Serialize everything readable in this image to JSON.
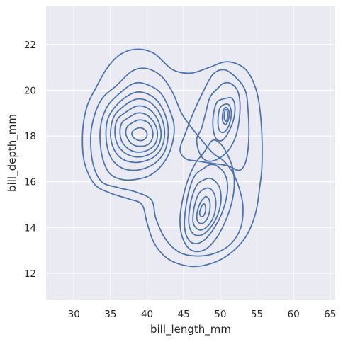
{
  "chart_data": {
    "type": "contour",
    "title": "",
    "xlabel": "bill_length_mm",
    "ylabel": "bill_depth_mm",
    "xlim": [
      26.2,
      65.7
    ],
    "ylim": [
      10.85,
      23.7
    ],
    "xticks": [
      30,
      35,
      40,
      45,
      50,
      55,
      60,
      65
    ],
    "yticks": [
      12,
      14,
      16,
      18,
      20,
      22
    ],
    "grid": true,
    "background": "#eaeaf2",
    "line_color": "#4c72b0",
    "grid_color": "#ffffff",
    "levels": [
      [
        [
          38.8,
          21.8
        ],
        [
          41.0,
          21.6
        ],
        [
          43.5,
          20.9
        ],
        [
          46.0,
          20.75
        ],
        [
          48.5,
          21.0
        ],
        [
          51.0,
          21.25
        ],
        [
          53.5,
          20.9
        ],
        [
          55.0,
          19.9
        ],
        [
          55.6,
          18.5
        ],
        [
          55.7,
          16.8
        ],
        [
          55.4,
          15.8
        ],
        [
          54.8,
          14.6
        ],
        [
          53.5,
          13.6
        ],
        [
          51.5,
          12.9
        ],
        [
          49.0,
          12.45
        ],
        [
          46.0,
          12.3
        ],
        [
          43.0,
          12.6
        ],
        [
          41.0,
          13.3
        ],
        [
          40.0,
          14.2
        ],
        [
          39.3,
          15.0
        ],
        [
          37.5,
          15.25
        ],
        [
          35.0,
          15.5
        ],
        [
          32.8,
          15.9
        ],
        [
          31.4,
          16.9
        ],
        [
          31.2,
          18.2
        ],
        [
          31.8,
          19.3
        ],
        [
          33.0,
          20.1
        ],
        [
          34.6,
          21.0
        ],
        [
          36.5,
          21.6
        ],
        [
          38.8,
          21.8
        ]
      ],
      [
        [
          35.8,
          20.2
        ],
        [
          38.0,
          20.85
        ],
        [
          40.0,
          20.95
        ],
        [
          42.0,
          20.6
        ],
        [
          43.5,
          19.9
        ],
        [
          44.7,
          19.0
        ],
        [
          46.0,
          18.4
        ],
        [
          47.5,
          17.8
        ],
        [
          49.0,
          17.25
        ],
        [
          50.5,
          16.9
        ],
        [
          51.7,
          16.4
        ],
        [
          52.6,
          15.7
        ],
        [
          53.1,
          14.9
        ],
        [
          52.8,
          14.0
        ],
        [
          51.5,
          13.3
        ],
        [
          49.5,
          12.9
        ],
        [
          47.0,
          12.75
        ],
        [
          44.5,
          12.9
        ],
        [
          42.5,
          13.5
        ],
        [
          41.2,
          14.4
        ],
        [
          40.6,
          15.2
        ],
        [
          38.5,
          15.55
        ],
        [
          36.0,
          15.75
        ],
        [
          33.8,
          16.0
        ],
        [
          32.6,
          16.8
        ],
        [
          32.3,
          18.0
        ],
        [
          32.9,
          19.0
        ],
        [
          34.0,
          19.7
        ],
        [
          35.8,
          20.2
        ]
      ],
      [
        [
          36.0,
          19.8
        ],
        [
          38.2,
          20.3
        ],
        [
          40.0,
          20.25
        ],
        [
          41.8,
          19.9
        ],
        [
          43.0,
          19.2
        ],
        [
          43.7,
          18.4
        ],
        [
          43.3,
          17.5
        ],
        [
          42.2,
          16.8
        ],
        [
          40.5,
          16.3
        ],
        [
          38.5,
          16.1
        ],
        [
          36.5,
          16.1
        ],
        [
          34.8,
          16.4
        ],
        [
          33.8,
          17.2
        ],
        [
          33.6,
          18.3
        ],
        [
          34.4,
          19.2
        ],
        [
          36.0,
          19.8
        ]
      ],
      [
        [
          36.3,
          19.5
        ],
        [
          38.3,
          19.9
        ],
        [
          40.0,
          19.85
        ],
        [
          41.5,
          19.5
        ],
        [
          42.5,
          18.9
        ],
        [
          42.9,
          18.2
        ],
        [
          42.5,
          17.4
        ],
        [
          41.4,
          16.9
        ],
        [
          39.8,
          16.6
        ],
        [
          38.0,
          16.5
        ],
        [
          36.3,
          16.65
        ],
        [
          35.0,
          17.1
        ],
        [
          34.4,
          17.9
        ],
        [
          34.7,
          18.8
        ],
        [
          36.3,
          19.5
        ]
      ],
      [
        [
          36.6,
          19.25
        ],
        [
          38.4,
          19.6
        ],
        [
          40.0,
          19.55
        ],
        [
          41.3,
          19.2
        ],
        [
          42.1,
          18.7
        ],
        [
          42.4,
          18.1
        ],
        [
          42.0,
          17.5
        ],
        [
          41.0,
          17.1
        ],
        [
          39.6,
          16.9
        ],
        [
          38.1,
          16.85
        ],
        [
          36.6,
          17.0
        ],
        [
          35.5,
          17.4
        ],
        [
          35.0,
          18.05
        ],
        [
          35.4,
          18.8
        ],
        [
          36.6,
          19.25
        ]
      ],
      [
        [
          36.9,
          19.0
        ],
        [
          38.5,
          19.3
        ],
        [
          39.9,
          19.25
        ],
        [
          41.0,
          18.95
        ],
        [
          41.7,
          18.5
        ],
        [
          41.9,
          18.0
        ],
        [
          41.5,
          17.55
        ],
        [
          40.6,
          17.25
        ],
        [
          39.4,
          17.1
        ],
        [
          38.2,
          17.1
        ],
        [
          37.0,
          17.25
        ],
        [
          36.0,
          17.6
        ],
        [
          35.6,
          18.15
        ],
        [
          35.9,
          18.7
        ],
        [
          36.9,
          19.0
        ]
      ],
      [
        [
          37.2,
          18.75
        ],
        [
          38.6,
          19.0
        ],
        [
          39.8,
          18.95
        ],
        [
          40.7,
          18.7
        ],
        [
          41.3,
          18.35
        ],
        [
          41.4,
          17.95
        ],
        [
          41.0,
          17.6
        ],
        [
          40.2,
          17.4
        ],
        [
          39.2,
          17.3
        ],
        [
          38.2,
          17.32
        ],
        [
          37.2,
          17.5
        ],
        [
          36.5,
          17.8
        ],
        [
          36.3,
          18.25
        ],
        [
          36.6,
          18.6
        ],
        [
          37.2,
          18.75
        ]
      ],
      [
        [
          37.6,
          18.5
        ],
        [
          38.8,
          18.7
        ],
        [
          39.8,
          18.65
        ],
        [
          40.5,
          18.45
        ],
        [
          40.8,
          18.1
        ],
        [
          40.6,
          17.8
        ],
        [
          40.0,
          17.6
        ],
        [
          39.1,
          17.55
        ],
        [
          38.2,
          17.6
        ],
        [
          37.5,
          17.8
        ],
        [
          37.1,
          18.1
        ],
        [
          37.2,
          18.35
        ],
        [
          37.6,
          18.5
        ]
      ],
      [
        [
          38.0,
          18.2
        ],
        [
          38.8,
          18.35
        ],
        [
          39.6,
          18.3
        ],
        [
          40.0,
          18.1
        ],
        [
          39.8,
          17.9
        ],
        [
          39.2,
          17.8
        ],
        [
          38.5,
          17.85
        ],
        [
          38.0,
          18.0
        ],
        [
          38.0,
          18.2
        ]
      ],
      [
        [
          48.9,
          17.8
        ],
        [
          47.8,
          17.3
        ],
        [
          46.6,
          16.8
        ],
        [
          45.6,
          16.1
        ],
        [
          44.9,
          15.3
        ],
        [
          44.5,
          14.4
        ],
        [
          44.7,
          13.7
        ],
        [
          45.5,
          13.15
        ],
        [
          46.6,
          12.95
        ],
        [
          48.0,
          13.05
        ],
        [
          49.4,
          13.5
        ],
        [
          50.6,
          14.2
        ],
        [
          51.5,
          15.0
        ],
        [
          51.9,
          15.8
        ],
        [
          51.7,
          16.6
        ],
        [
          50.8,
          17.3
        ],
        [
          49.9,
          17.7
        ],
        [
          48.9,
          17.8
        ]
      ],
      [
        [
          47.8,
          16.6
        ],
        [
          46.6,
          16.3
        ],
        [
          45.8,
          15.7
        ],
        [
          45.3,
          14.9
        ],
        [
          45.1,
          14.1
        ],
        [
          45.5,
          13.55
        ],
        [
          46.4,
          13.3
        ],
        [
          47.6,
          13.4
        ],
        [
          48.8,
          13.8
        ],
        [
          49.9,
          14.4
        ],
        [
          50.7,
          15.1
        ],
        [
          51.0,
          15.8
        ],
        [
          50.6,
          16.35
        ],
        [
          49.5,
          16.7
        ],
        [
          48.6,
          16.75
        ],
        [
          47.8,
          16.6
        ]
      ],
      [
        [
          47.9,
          16.1
        ],
        [
          46.9,
          15.9
        ],
        [
          46.2,
          15.4
        ],
        [
          45.8,
          14.8
        ],
        [
          45.7,
          14.2
        ],
        [
          46.1,
          13.8
        ],
        [
          46.9,
          13.65
        ],
        [
          47.9,
          13.75
        ],
        [
          48.9,
          14.1
        ],
        [
          49.7,
          14.6
        ],
        [
          50.1,
          15.2
        ],
        [
          49.9,
          15.75
        ],
        [
          49.2,
          16.05
        ],
        [
          48.5,
          16.15
        ],
        [
          47.9,
          16.1
        ]
      ],
      [
        [
          47.9,
          15.7
        ],
        [
          47.1,
          15.5
        ],
        [
          46.6,
          15.1
        ],
        [
          46.3,
          14.6
        ],
        [
          46.3,
          14.2
        ],
        [
          46.8,
          13.95
        ],
        [
          47.5,
          13.9
        ],
        [
          48.4,
          14.1
        ],
        [
          49.1,
          14.5
        ],
        [
          49.4,
          15.0
        ],
        [
          49.2,
          15.45
        ],
        [
          48.6,
          15.7
        ],
        [
          47.9,
          15.7
        ]
      ],
      [
        [
          47.8,
          15.3
        ],
        [
          47.3,
          15.1
        ],
        [
          46.9,
          14.75
        ],
        [
          46.8,
          14.4
        ],
        [
          47.1,
          14.2
        ],
        [
          47.7,
          14.2
        ],
        [
          48.3,
          14.45
        ],
        [
          48.6,
          14.85
        ],
        [
          48.5,
          15.2
        ],
        [
          48.1,
          15.35
        ],
        [
          47.8,
          15.3
        ]
      ],
      [
        [
          47.6,
          15.0
        ],
        [
          47.2,
          14.7
        ],
        [
          47.3,
          14.5
        ],
        [
          47.7,
          14.5
        ],
        [
          48.0,
          14.75
        ],
        [
          47.9,
          15.0
        ],
        [
          47.6,
          15.0
        ]
      ],
      [
        [
          50.8,
          19.65
        ],
        [
          49.6,
          19.5
        ],
        [
          49.1,
          19.0
        ],
        [
          49.0,
          18.4
        ],
        [
          49.4,
          17.9
        ],
        [
          50.2,
          17.8
        ],
        [
          51.0,
          18.1
        ],
        [
          51.8,
          18.7
        ],
        [
          52.0,
          19.3
        ],
        [
          51.6,
          19.65
        ],
        [
          50.8,
          19.65
        ]
      ],
      [
        [
          50.8,
          19.4
        ],
        [
          50.0,
          19.25
        ],
        [
          49.7,
          18.8
        ],
        [
          49.8,
          18.3
        ],
        [
          50.4,
          18.15
        ],
        [
          51.1,
          18.4
        ],
        [
          51.5,
          18.9
        ],
        [
          51.3,
          19.3
        ],
        [
          50.8,
          19.4
        ]
      ],
      [
        [
          50.8,
          19.25
        ],
        [
          50.4,
          19.1
        ],
        [
          50.3,
          18.7
        ],
        [
          50.7,
          18.5
        ],
        [
          51.1,
          18.7
        ],
        [
          51.2,
          19.05
        ],
        [
          50.8,
          19.25
        ]
      ],
      [
        [
          50.75,
          19.15
        ],
        [
          50.55,
          19.0
        ],
        [
          50.55,
          18.75
        ],
        [
          50.8,
          18.65
        ],
        [
          51.0,
          18.85
        ],
        [
          50.95,
          19.1
        ],
        [
          50.75,
          19.15
        ]
      ],
      [
        [
          49.7,
          20.1
        ],
        [
          48.6,
          19.7
        ],
        [
          48.0,
          19.0
        ],
        [
          47.4,
          18.3
        ],
        [
          46.8,
          17.9
        ],
        [
          47.0,
          17.4
        ],
        [
          47.7,
          17.0
        ],
        [
          48.8,
          16.9
        ],
        [
          50.2,
          17.1
        ],
        [
          51.4,
          17.5
        ],
        [
          52.3,
          18.2
        ],
        [
          52.7,
          19.2
        ],
        [
          52.4,
          19.95
        ],
        [
          51.4,
          20.3
        ],
        [
          50.4,
          20.3
        ],
        [
          49.7,
          20.1
        ]
      ],
      [
        [
          53.4,
          20.0
        ],
        [
          52.0,
          20.6
        ],
        [
          50.5,
          20.9
        ],
        [
          49.0,
          20.7
        ],
        [
          47.6,
          19.9
        ],
        [
          46.3,
          19.0
        ],
        [
          45.2,
          18.1
        ],
        [
          44.5,
          17.4
        ],
        [
          45.3,
          17.0
        ],
        [
          47.0,
          16.9
        ],
        [
          49.0,
          16.8
        ],
        [
          51.0,
          16.7
        ],
        [
          52.6,
          16.5
        ],
        [
          53.5,
          16.9
        ],
        [
          53.9,
          17.9
        ],
        [
          53.8,
          19.1
        ],
        [
          53.4,
          20.0
        ]
      ]
    ]
  }
}
